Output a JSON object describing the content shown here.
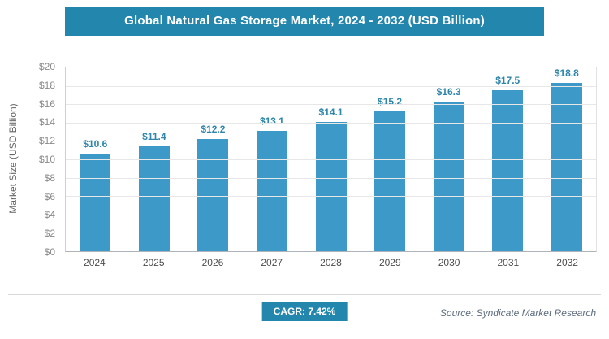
{
  "header": {
    "title": "Global Natural Gas Storage Market, 2024 - 2032 (USD Billion)"
  },
  "chart_data": {
    "type": "bar",
    "title": "Global Natural Gas Storage Market, 2024 - 2032 (USD Billion)",
    "categories": [
      "2024",
      "2025",
      "2026",
      "2027",
      "2028",
      "2029",
      "2030",
      "2031",
      "2032"
    ],
    "values": [
      10.6,
      11.4,
      12.2,
      13.1,
      14.1,
      15.2,
      16.3,
      17.5,
      18.8
    ],
    "bar_labels": [
      "$10.6",
      "$11.4",
      "$12.2",
      "$13.1",
      "$14.1",
      "$15.2",
      "$16.3",
      "$17.5",
      "$18.8"
    ],
    "xlabel": "",
    "ylabel": "Market Size (USD Billion)",
    "ylim": [
      0,
      20
    ],
    "ytick_step": 2,
    "yticks": [
      "$20",
      "$18",
      "$16",
      "$14",
      "$12",
      "$10",
      "$8",
      "$6",
      "$4",
      "$2",
      "$0"
    ],
    "grid": true,
    "legend": "none",
    "bar_color": "#3D9AC8",
    "label_color": "#2E86AB"
  },
  "footer": {
    "cagr": "CAGR: 7.42%",
    "source": "Source: Syndicate Market Research"
  },
  "colors": {
    "banner": "#2386AD",
    "badge": "#2386AD"
  }
}
